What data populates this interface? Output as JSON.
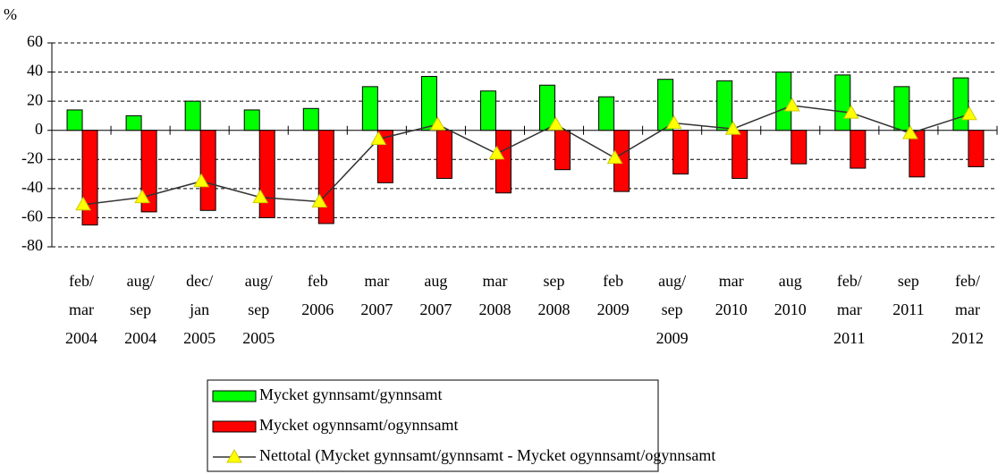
{
  "chart_data": {
    "type": "bar",
    "ylabel": "%",
    "categories": [
      [
        "feb/",
        "mar",
        "2004"
      ],
      [
        "aug/",
        "sep",
        "2004"
      ],
      [
        "dec/",
        "jan",
        "2005"
      ],
      [
        "aug/",
        "sep",
        "2005"
      ],
      [
        "feb",
        "2006"
      ],
      [
        "mar",
        "2007"
      ],
      [
        "aug",
        "2007"
      ],
      [
        "mar",
        "2008"
      ],
      [
        "sep",
        "2008"
      ],
      [
        "feb",
        "2009"
      ],
      [
        "aug/",
        "sep",
        "2009"
      ],
      [
        "mar",
        "2010"
      ],
      [
        "aug",
        "2010"
      ],
      [
        "feb/",
        "mar",
        "2011"
      ],
      [
        "sep",
        "2011"
      ],
      [
        "feb/",
        "mar",
        "2012"
      ]
    ],
    "series": [
      {
        "name": "Mycket gynnsamt/gynnsamt",
        "type": "bar",
        "color": "#00ff00",
        "values": [
          14,
          10,
          20,
          14,
          15,
          30,
          37,
          27,
          31,
          23,
          35,
          34,
          40,
          38,
          30,
          36
        ]
      },
      {
        "name": "Mycket ogynnsamt/ogynnsamt",
        "type": "bar",
        "color": "#ff0000",
        "values": [
          -65,
          -56,
          -55,
          -60,
          -64,
          -36,
          -33,
          -43,
          -27,
          -42,
          -30,
          -33,
          -23,
          -26,
          -32,
          -25
        ]
      },
      {
        "name": "Nettotal (Mycket gynnsamt/gynnsamt - Mycket ogynnsamt/ogynnsamt",
        "type": "line",
        "color": "#333333",
        "marker_color": "#ffff00",
        "values": [
          -51,
          -46,
          -35,
          -46,
          -49,
          -6,
          4,
          -16,
          4,
          -19,
          5,
          1,
          17,
          12,
          -2,
          11
        ]
      }
    ],
    "ylim": [
      -80,
      60
    ],
    "yticks": [
      -80,
      -60,
      -40,
      -20,
      0,
      20,
      40,
      60
    ],
    "grid": true,
    "legend": "bottom"
  }
}
